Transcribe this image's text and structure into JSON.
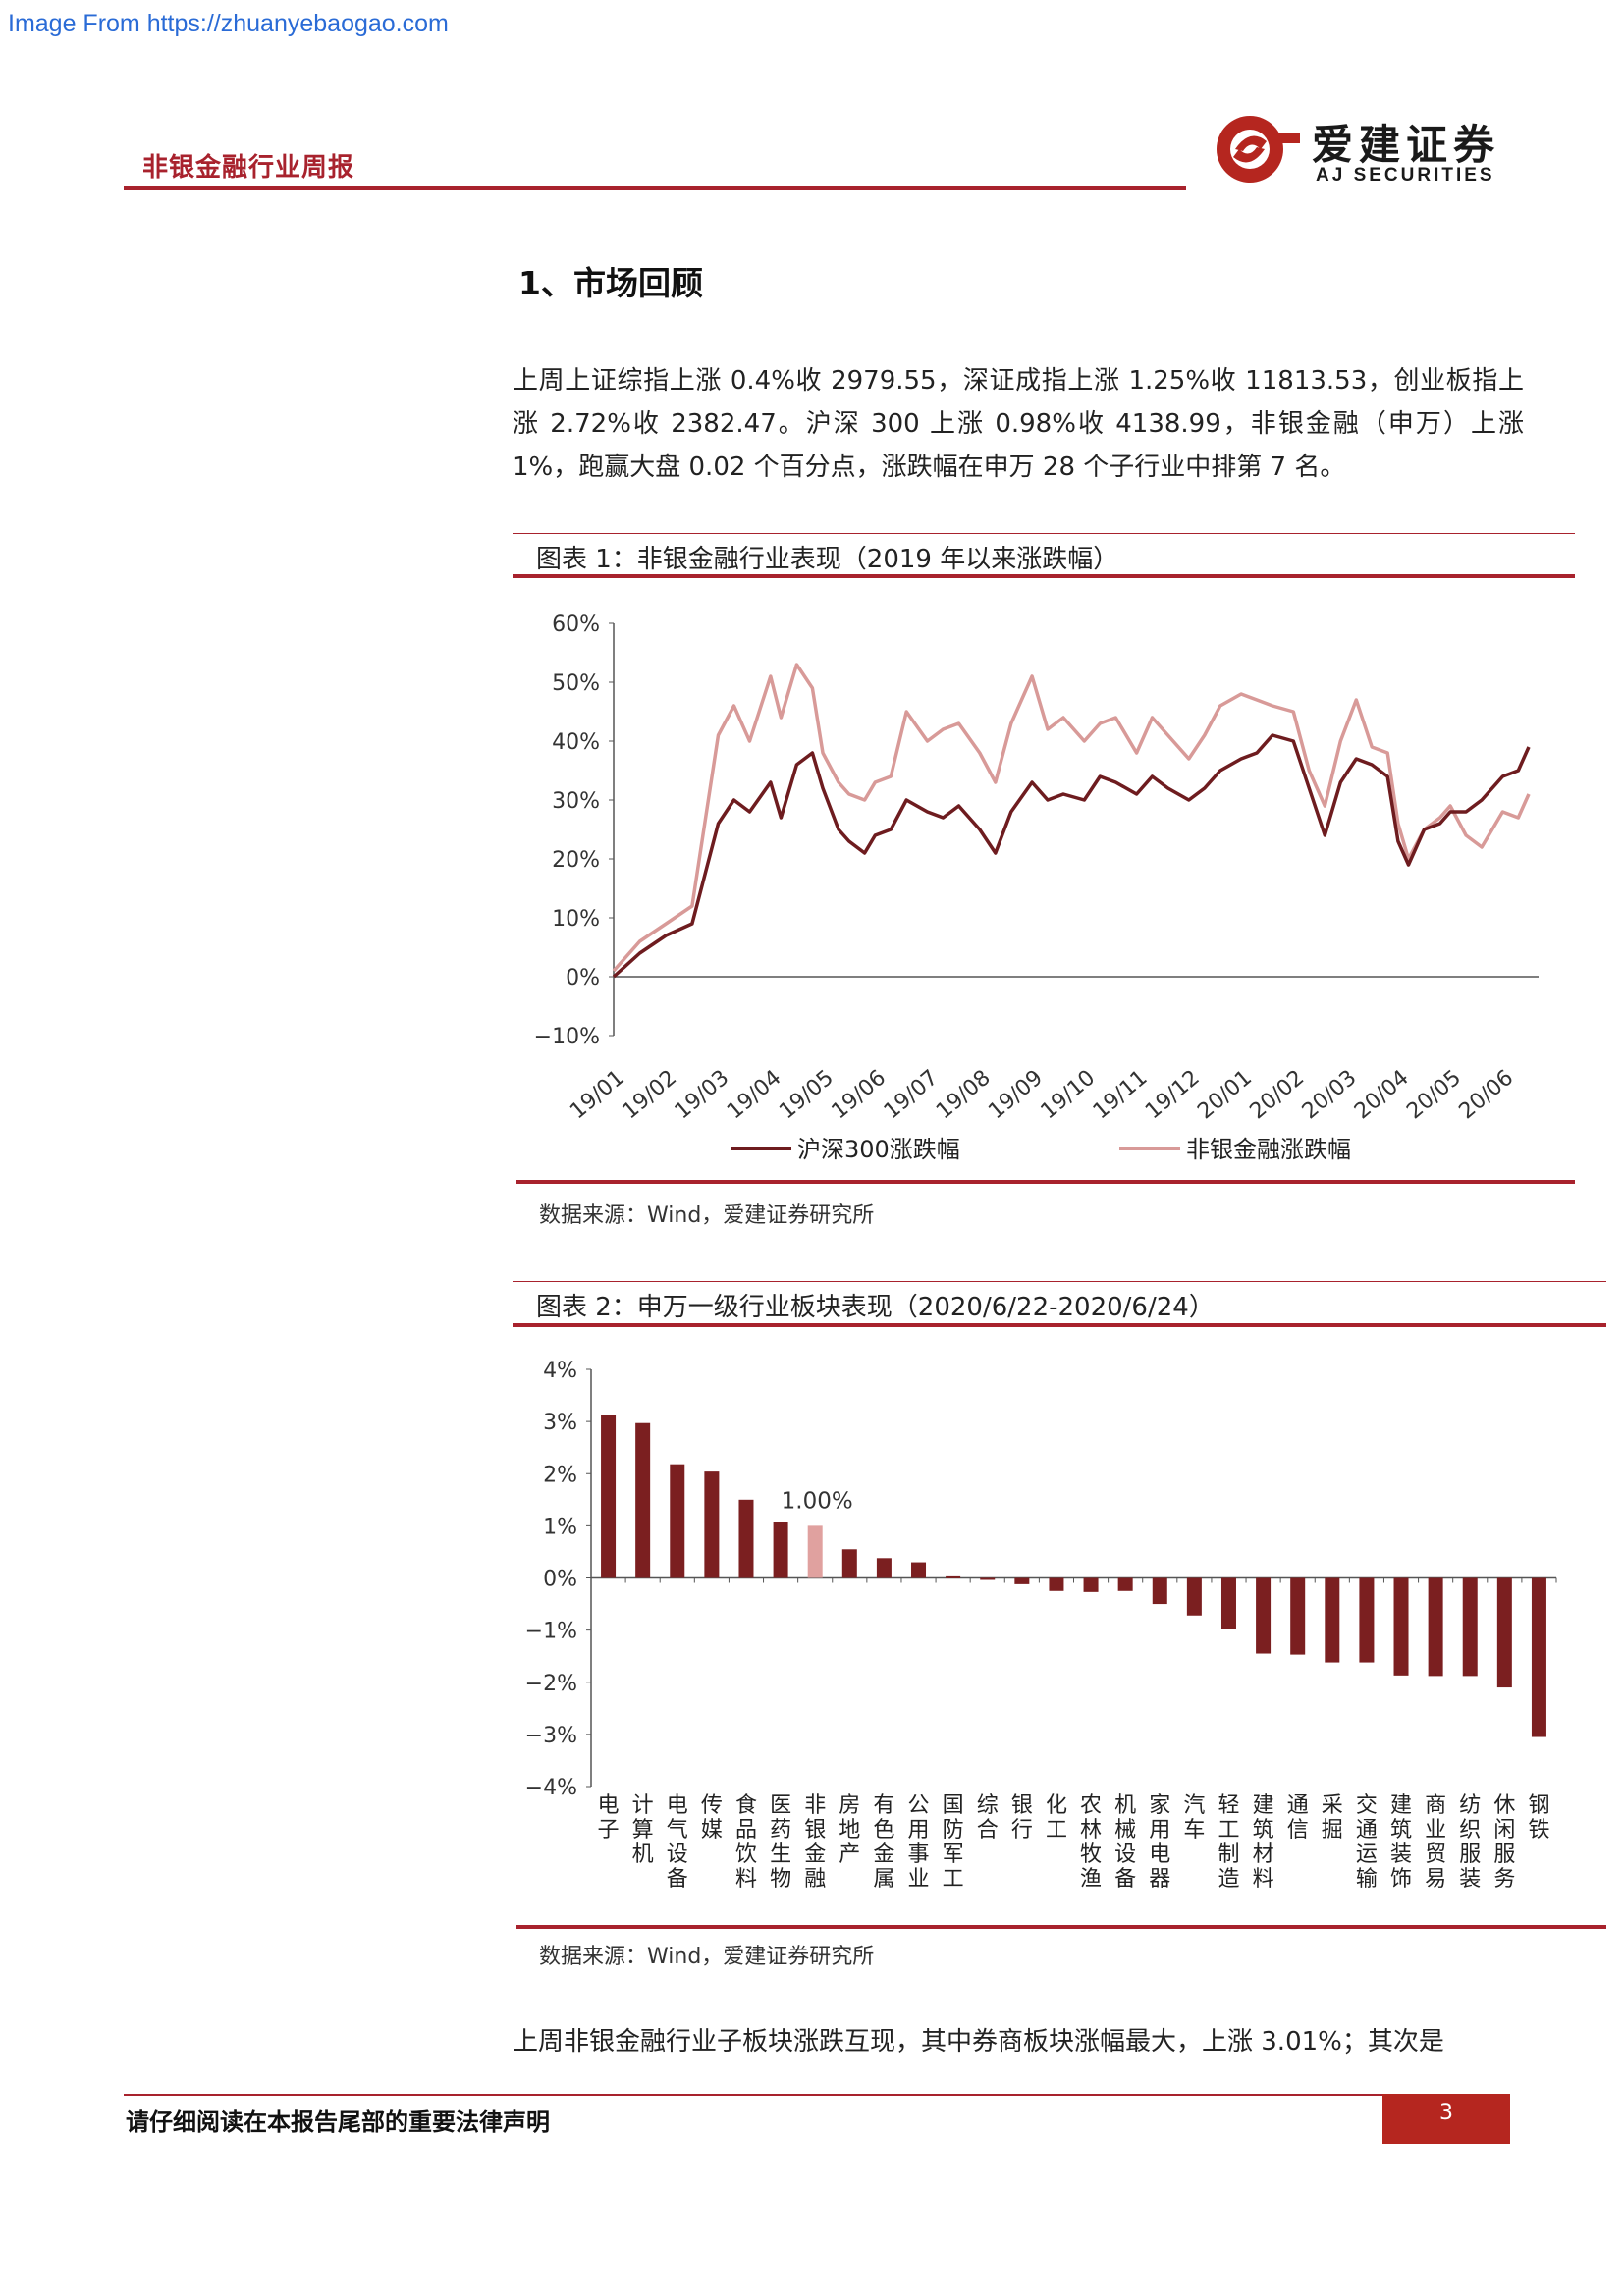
{
  "watermark": "Image From https://zhuanyebaogao.com",
  "header": {
    "report_title": "非银金融行业周报",
    "logo_cn": "爱建证券",
    "logo_en": "AJ SECURITIES"
  },
  "section_title": "1、市场回顾",
  "paragraphs": {
    "p1": "上周上证综指上涨 0.4%收 2979.55，深证成指上涨 1.25%收 11813.53，创业板指上涨 2.72%收 2382.47。沪深 300 上涨 0.98%收 4138.99，非银金融（申万）上涨 1%，跑赢大盘 0.02 个百分点，涨跌幅在申万 28 个子行业中排第 7 名。",
    "p2": "上周非银金融行业子板块涨跌互现，其中券商板块涨幅最大，上涨 3.01%；其次是"
  },
  "figure1": {
    "caption": "图表 1：非银金融行业表现（2019 年以来涨跌幅）",
    "source": "数据来源：Wind，爱建证券研究所"
  },
  "figure2": {
    "caption": "图表 2：申万一级行业板块表现（2020/6/22-2020/6/24）",
    "source": "数据来源：Wind，爱建证券研究所"
  },
  "chart_data": [
    {
      "type": "line",
      "title": "",
      "xlabel": "",
      "ylabel": "",
      "ylim": [
        -0.1,
        0.6
      ],
      "y_ticks": [
        "60%",
        "50%",
        "40%",
        "30%",
        "20%",
        "10%",
        "0%",
        "−10%"
      ],
      "x_ticks": [
        "19/01",
        "19/02",
        "19/03",
        "19/04",
        "19/05",
        "19/06",
        "19/07",
        "19/08",
        "19/09",
        "19/10",
        "19/11",
        "19/12",
        "20/01",
        "20/02",
        "20/03",
        "20/04",
        "20/05",
        "20/06"
      ],
      "legend_position": "bottom",
      "series": [
        {
          "name": "沪深300涨跌幅",
          "color": "#6e1c1f",
          "x": [
            0,
            0.5,
            1,
            1.5,
            2,
            2.3,
            2.6,
            3,
            3.2,
            3.5,
            3.8,
            4,
            4.3,
            4.5,
            4.8,
            5,
            5.3,
            5.6,
            6,
            6.3,
            6.6,
            7,
            7.3,
            7.6,
            8,
            8.3,
            8.6,
            9,
            9.3,
            9.6,
            10,
            10.3,
            10.6,
            11,
            11.3,
            11.6,
            12,
            12.3,
            12.6,
            13,
            13.3,
            13.6,
            13.9,
            14.2,
            14.5,
            14.8,
            15,
            15.2,
            15.5,
            15.8,
            16,
            16.3,
            16.6,
            17,
            17.3,
            17.5
          ],
          "values": [
            0.0,
            0.04,
            0.07,
            0.09,
            0.26,
            0.3,
            0.28,
            0.33,
            0.27,
            0.36,
            0.38,
            0.32,
            0.25,
            0.23,
            0.21,
            0.24,
            0.25,
            0.3,
            0.28,
            0.27,
            0.29,
            0.25,
            0.21,
            0.28,
            0.33,
            0.3,
            0.31,
            0.3,
            0.34,
            0.33,
            0.31,
            0.34,
            0.32,
            0.3,
            0.32,
            0.35,
            0.37,
            0.38,
            0.41,
            0.4,
            0.32,
            0.24,
            0.33,
            0.37,
            0.36,
            0.34,
            0.23,
            0.19,
            0.25,
            0.26,
            0.28,
            0.28,
            0.3,
            0.34,
            0.35,
            0.39
          ]
        },
        {
          "name": "非银金融涨跌幅",
          "color": "#d89a98",
          "x": [
            0,
            0.5,
            1,
            1.5,
            2,
            2.3,
            2.6,
            3,
            3.2,
            3.5,
            3.8,
            4,
            4.3,
            4.5,
            4.8,
            5,
            5.3,
            5.6,
            6,
            6.3,
            6.6,
            7,
            7.3,
            7.6,
            8,
            8.3,
            8.6,
            9,
            9.3,
            9.6,
            10,
            10.3,
            10.6,
            11,
            11.3,
            11.6,
            12,
            12.3,
            12.6,
            13,
            13.3,
            13.6,
            13.9,
            14.2,
            14.5,
            14.8,
            15,
            15.2,
            15.5,
            15.8,
            16,
            16.3,
            16.6,
            17,
            17.3,
            17.5
          ],
          "values": [
            0.01,
            0.06,
            0.09,
            0.12,
            0.41,
            0.46,
            0.4,
            0.51,
            0.44,
            0.53,
            0.49,
            0.38,
            0.33,
            0.31,
            0.3,
            0.33,
            0.34,
            0.45,
            0.4,
            0.42,
            0.43,
            0.38,
            0.33,
            0.43,
            0.51,
            0.42,
            0.44,
            0.4,
            0.43,
            0.44,
            0.38,
            0.44,
            0.41,
            0.37,
            0.41,
            0.46,
            0.48,
            0.47,
            0.46,
            0.45,
            0.35,
            0.29,
            0.4,
            0.47,
            0.39,
            0.38,
            0.26,
            0.2,
            0.25,
            0.27,
            0.29,
            0.24,
            0.22,
            0.28,
            0.27,
            0.31
          ]
        }
      ]
    },
    {
      "type": "bar",
      "title": "",
      "xlabel": "",
      "ylabel": "",
      "ylim": [
        -4,
        4
      ],
      "y_ticks": [
        "4%",
        "3%",
        "2%",
        "1%",
        "0%",
        "−1%",
        "−2%",
        "−3%",
        "−4%"
      ],
      "categories": [
        "电子",
        "计算机",
        "电气设备",
        "传媒",
        "食品饮料",
        "医药生物",
        "非银金融",
        "房地产",
        "有色金属",
        "公用事业",
        "国防军工",
        "综合",
        "银行",
        "化工",
        "农林牧渔",
        "机械设备",
        "家用电器",
        "汽车",
        "轻工制造",
        "建筑材料",
        "通信",
        "采掘",
        "交通运输",
        "建筑装饰",
        "商业贸易",
        "纺织服装",
        "休闲服务",
        "钢铁"
      ],
      "values": [
        3.12,
        2.97,
        2.18,
        2.04,
        1.5,
        1.08,
        1.0,
        0.55,
        0.38,
        0.3,
        0.03,
        0.0,
        -0.12,
        -0.25,
        -0.27,
        -0.25,
        -0.5,
        -0.72,
        -0.97,
        -1.45,
        -1.47,
        -1.62,
        -1.62,
        -1.87,
        -1.88,
        -1.88,
        -2.1,
        -3.05
      ],
      "highlight_index": 6,
      "highlight_label": "1.00%",
      "colors": {
        "normal": "#7b1f20",
        "highlight": "#e0a19f"
      }
    }
  ],
  "footer": {
    "disclaimer": "请仔细阅读在本报告尾部的重要法律声明",
    "page_number": "3"
  }
}
